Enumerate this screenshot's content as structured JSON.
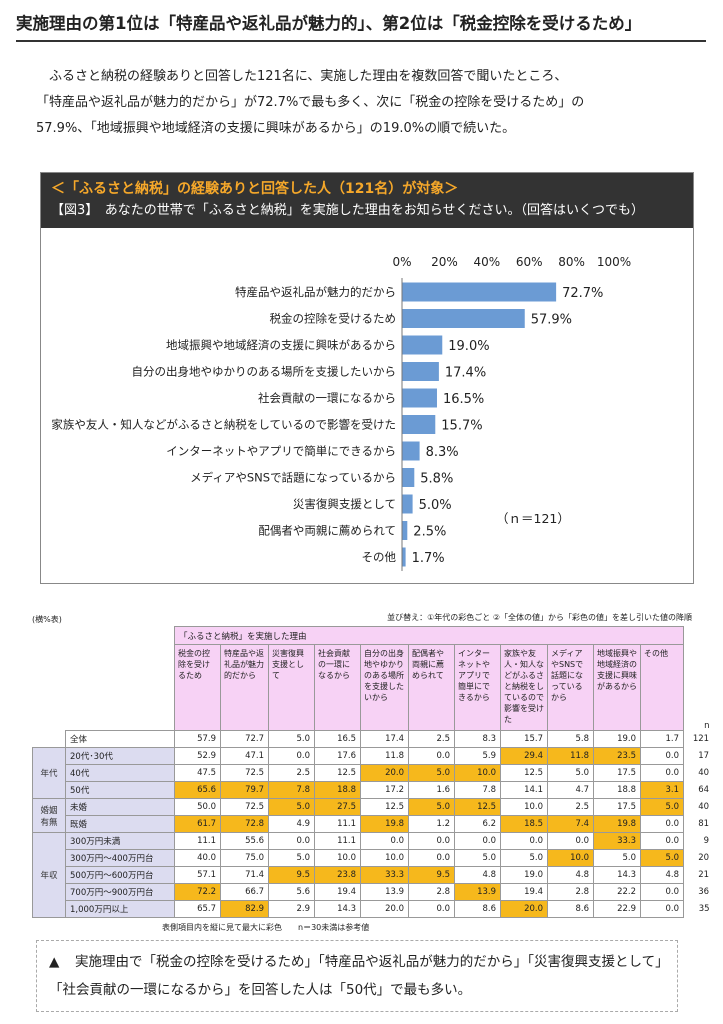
{
  "headline": "実施理由の第1位は「特産品や返礼品が魅力的」、第2位は「税金控除を受けるため」",
  "intro": "　ふるさと納税の経験ありと回答した121名に、実施した理由を複数回答で聞いたところ、\n「特産品や返礼品が魅力的だから」が72.7%で最も多く、次に「税金の控除を受けるため」の\n57.9%、「地域振興や地域経済の支援に興味があるから」の19.0%の順で続いた。",
  "panel": {
    "title": "＜「ふるさと納税」の経験ありと回答した人（121名）が対象＞",
    "question": "【図3】　あなたの世帯で「ふるさと納税」を実施した理由をお知らせください。（回答はいくつでも）"
  },
  "chart_data": {
    "type": "bar",
    "orientation": "horizontal",
    "categories": [
      "特産品や返礼品が魅力的だから",
      "税金の控除を受けるため",
      "地域振興や地域経済の支援に興味があるから",
      "自分の出身地やゆかりのある場所を支援したいから",
      "社会貢献の一環になるから",
      "家族や友人・知人などがふるさと納税をしているので影響を受けた",
      "インターネットやアプリで簡単にできるから",
      "メディアやSNSで話題になっているから",
      "災害復興支援として",
      "配偶者や両親に薦められて",
      "その他"
    ],
    "values": [
      72.7,
      57.9,
      19.0,
      17.4,
      16.5,
      15.7,
      8.3,
      5.8,
      5.0,
      2.5,
      1.7
    ],
    "value_labels": [
      "72.7%",
      "57.9%",
      "19.0%",
      "17.4%",
      "16.5%",
      "15.7%",
      "8.3%",
      "5.8%",
      "5.0%",
      "2.5%",
      "1.7%"
    ],
    "ticks": [
      "0%",
      "20%",
      "40%",
      "60%",
      "80%",
      "100%"
    ],
    "xlim": [
      0,
      100
    ],
    "annotation": "（ｎ＝121）",
    "bar_color": "#6b9bd4"
  },
  "table": {
    "unit": "(横%表)",
    "legend": "並び替え：①年代の彩色ごと ②「全体の値」から「彩色の値」を差し引いた値の降順",
    "group_header": "「ふるさと納税」を実施した理由",
    "columns": [
      "税金の控除を受けるため",
      "特産品や返礼品が魅力的だから",
      "災害復興支援として",
      "社会貢献の一環になるから",
      "自分の出身地やゆかりのある場所を支援したいから",
      "配偶者や両親に薦められて",
      "インターネットやアプリで簡単にできるから",
      "家族や友人・知人などがふるさと納税をしているので影響を受けた",
      "メディアやSNSで話題になっているから",
      "地域振興や地域経済の支援に興味があるから",
      "その他"
    ],
    "n_label": "n",
    "total": {
      "label": "全体",
      "values": [
        "57.9",
        "72.7",
        "5.0",
        "16.5",
        "17.4",
        "2.5",
        "8.3",
        "15.7",
        "5.8",
        "19.0",
        "1.7"
      ],
      "n": "121"
    },
    "groups": [
      {
        "category": "年代",
        "rows": [
          {
            "label": "20代･30代",
            "values": [
              "52.9",
              "47.1",
              "0.0",
              "17.6",
              "11.8",
              "0.0",
              "5.9",
              "29.4",
              "11.8",
              "23.5",
              "0.0"
            ],
            "hl": [
              7,
              8,
              9
            ],
            "n": "17"
          },
          {
            "label": "40代",
            "values": [
              "47.5",
              "72.5",
              "2.5",
              "12.5",
              "20.0",
              "5.0",
              "10.0",
              "12.5",
              "5.0",
              "17.5",
              "0.0"
            ],
            "hl": [
              4,
              5,
              6
            ],
            "n": "40"
          },
          {
            "label": "50代",
            "values": [
              "65.6",
              "79.7",
              "7.8",
              "18.8",
              "17.2",
              "1.6",
              "7.8",
              "14.1",
              "4.7",
              "18.8",
              "3.1"
            ],
            "hl": [
              0,
              1,
              2,
              3,
              10
            ],
            "n": "64"
          }
        ]
      },
      {
        "category": "婚姻有無",
        "rows": [
          {
            "label": "未婚",
            "values": [
              "50.0",
              "72.5",
              "5.0",
              "27.5",
              "12.5",
              "5.0",
              "12.5",
              "10.0",
              "2.5",
              "17.5",
              "5.0"
            ],
            "hl": [
              2,
              3,
              5,
              6,
              10
            ],
            "n": "40"
          },
          {
            "label": "既婚",
            "values": [
              "61.7",
              "72.8",
              "4.9",
              "11.1",
              "19.8",
              "1.2",
              "6.2",
              "18.5",
              "7.4",
              "19.8",
              "0.0"
            ],
            "hl": [
              0,
              1,
              4,
              7,
              8,
              9
            ],
            "n": "81"
          }
        ]
      },
      {
        "category": "年収",
        "rows": [
          {
            "label": "300万円未満",
            "values": [
              "11.1",
              "55.6",
              "0.0",
              "11.1",
              "0.0",
              "0.0",
              "0.0",
              "0.0",
              "0.0",
              "33.3",
              "0.0"
            ],
            "hl": [
              9
            ],
            "n": "9"
          },
          {
            "label": "300万円～400万円台",
            "values": [
              "40.0",
              "75.0",
              "5.0",
              "10.0",
              "10.0",
              "0.0",
              "5.0",
              "5.0",
              "10.0",
              "5.0",
              "5.0"
            ],
            "hl": [
              8,
              10
            ],
            "n": "20"
          },
          {
            "label": "500万円～600万円台",
            "values": [
              "57.1",
              "71.4",
              "9.5",
              "23.8",
              "33.3",
              "9.5",
              "4.8",
              "19.0",
              "4.8",
              "14.3",
              "4.8"
            ],
            "hl": [
              2,
              3,
              4,
              5
            ],
            "n": "21"
          },
          {
            "label": "700万円～900万円台",
            "values": [
              "72.2",
              "66.7",
              "5.6",
              "19.4",
              "13.9",
              "2.8",
              "13.9",
              "19.4",
              "2.8",
              "22.2",
              "0.0"
            ],
            "hl": [
              0,
              6
            ],
            "n": "36"
          },
          {
            "label": "1,000万円以上",
            "values": [
              "65.7",
              "82.9",
              "2.9",
              "14.3",
              "20.0",
              "0.0",
              "8.6",
              "20.0",
              "8.6",
              "22.9",
              "0.0"
            ],
            "hl": [
              1,
              7
            ],
            "n": "35"
          }
        ]
      }
    ],
    "note": "表側項目内を縦に見て最大に彩色　　n＝30未満は参考値"
  },
  "conclusion": "実施理由で「税金の控除を受けるため」「特産品や返礼品が魅力的だから」「災害復興支援として」「社会貢献の一環になるから」を回答した人は「50代」で最も多い。",
  "conclusion_marker": "▲"
}
